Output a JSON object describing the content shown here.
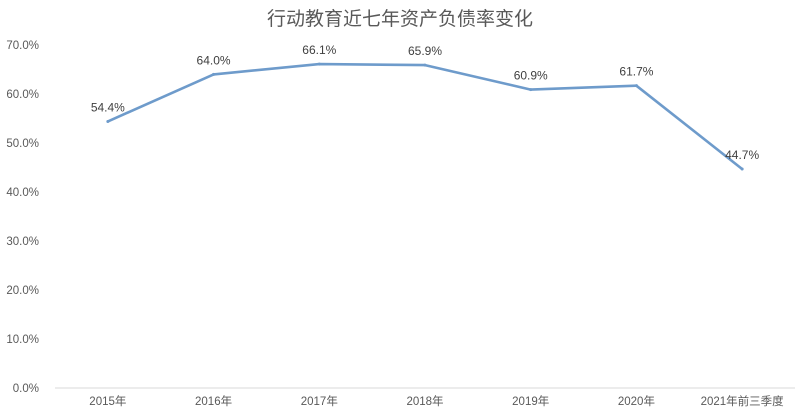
{
  "chart_data": {
    "type": "line",
    "title": "行动教育近七年资产负债率变化",
    "xlabel": "",
    "ylabel": "",
    "categories": [
      "2015年",
      "2016年",
      "2017年",
      "2018年",
      "2019年",
      "2020年",
      "2021年前三季度"
    ],
    "series": [
      {
        "values": [
          54.4,
          64.0,
          66.1,
          65.9,
          60.9,
          61.7,
          44.7
        ],
        "labels": [
          "54.4%",
          "64.0%",
          "66.1%",
          "65.9%",
          "60.9%",
          "61.7%",
          "44.7%"
        ],
        "color": "#6e9bcb"
      }
    ],
    "ylim": [
      0,
      70
    ],
    "yticks": [
      0,
      10,
      20,
      30,
      40,
      50,
      60,
      70
    ],
    "ytick_labels": [
      "0.0%",
      "10.0%",
      "20.0%",
      "30.0%",
      "40.0%",
      "50.0%",
      "60.0%",
      "70.0%"
    ],
    "grid": false,
    "legend": "none"
  }
}
